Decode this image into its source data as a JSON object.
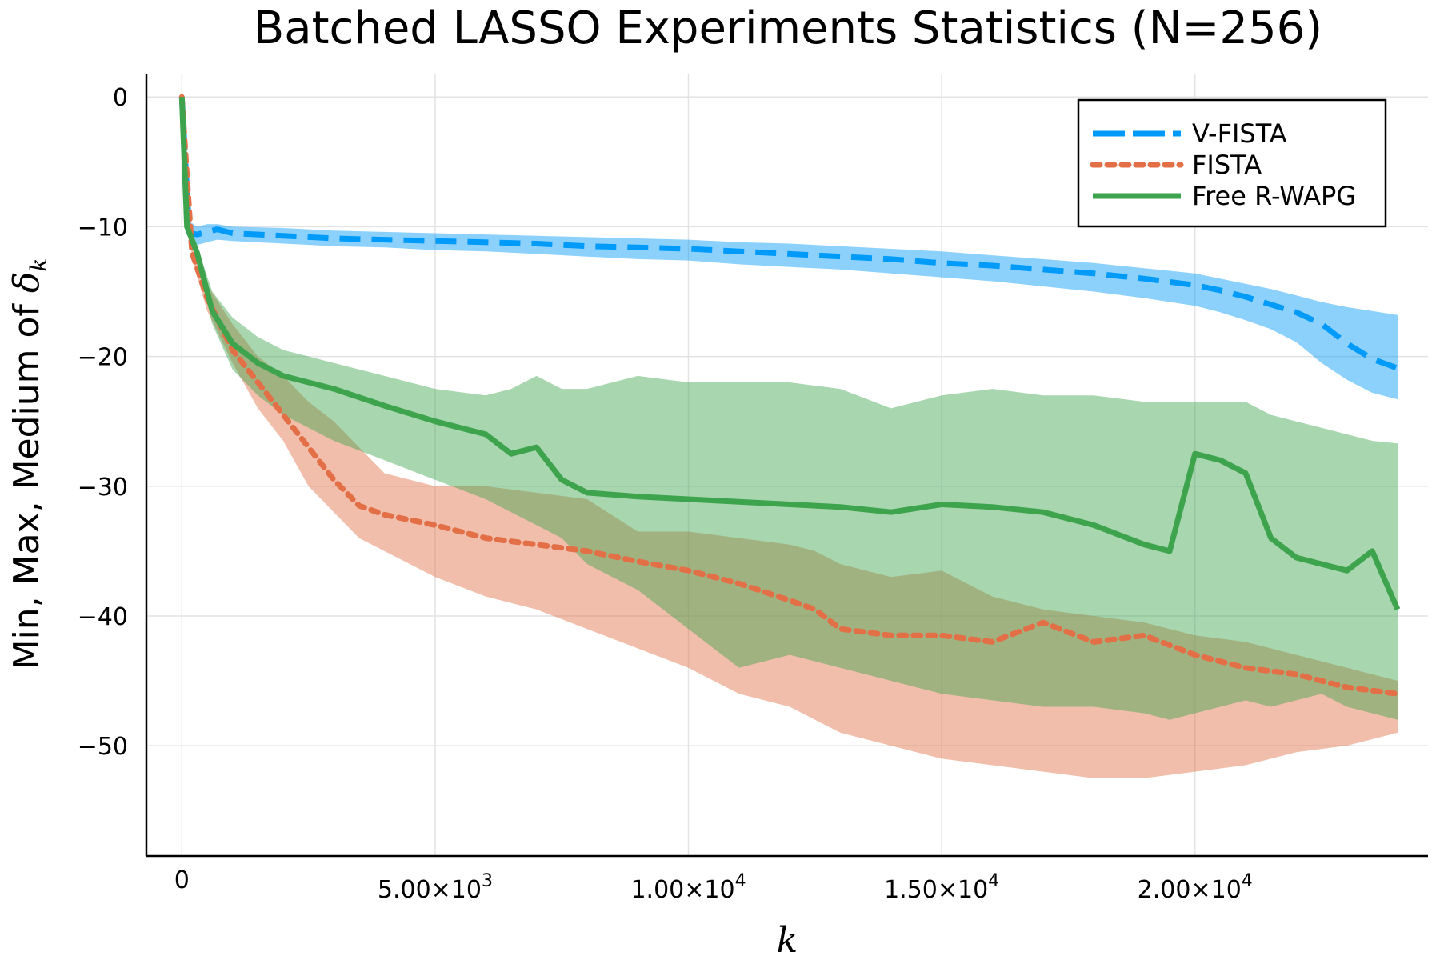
{
  "chart_data": {
    "type": "line",
    "title": "Batched LASSO Experiments Statistics (N=256)",
    "xlabel": "k",
    "ylabel_prefix": "Min, Max, Medium of ",
    "ylabel_symbol": "δ",
    "ylabel_subscript": "k",
    "xlim": [
      -700,
      24600
    ],
    "ylim": [
      -58.5,
      1.8
    ],
    "x_ticks": [
      {
        "value": 0,
        "label": "0",
        "exp": ""
      },
      {
        "value": 5000,
        "label": "5.00×10",
        "exp": "3"
      },
      {
        "value": 10000,
        "label": "1.00×10",
        "exp": "4"
      },
      {
        "value": 15000,
        "label": "1.50×10",
        "exp": "4"
      },
      {
        "value": 20000,
        "label": "2.00×10",
        "exp": "4"
      }
    ],
    "y_ticks": [
      {
        "value": 0,
        "label": "0"
      },
      {
        "value": -10,
        "label": "−10"
      },
      {
        "value": -20,
        "label": "−20"
      },
      {
        "value": -30,
        "label": "−30"
      },
      {
        "value": -40,
        "label": "−40"
      },
      {
        "value": -50,
        "label": "−50"
      }
    ],
    "grid": true,
    "legend_position": "top-right",
    "series": [
      {
        "name": "V-FISTA",
        "color": "#009af9",
        "dash": "dashed",
        "x": [
          0,
          150,
          300,
          500,
          700,
          1000,
          2000,
          3000,
          4000,
          5000,
          6000,
          7000,
          8000,
          9000,
          10000,
          11000,
          12000,
          13000,
          14000,
          15000,
          16000,
          17000,
          18000,
          19000,
          20000,
          20500,
          21000,
          21500,
          22000,
          22500,
          23000,
          23500,
          24000
        ],
        "median": [
          0,
          -10.5,
          -10.6,
          -10.4,
          -10.2,
          -10.5,
          -10.7,
          -10.9,
          -11.0,
          -11.1,
          -11.2,
          -11.3,
          -11.5,
          -11.6,
          -11.7,
          -11.9,
          -12.1,
          -12.3,
          -12.5,
          -12.8,
          -13.0,
          -13.3,
          -13.6,
          -14.0,
          -14.5,
          -14.9,
          -15.4,
          -16.0,
          -16.6,
          -17.5,
          -19.0,
          -20.2,
          -20.9
        ],
        "min": [
          0,
          -11.2,
          -11.4,
          -11.2,
          -11.0,
          -11.1,
          -11.3,
          -11.5,
          -11.6,
          -11.8,
          -11.9,
          -12.1,
          -12.3,
          -12.5,
          -12.6,
          -12.9,
          -13.1,
          -13.3,
          -13.6,
          -13.9,
          -14.2,
          -14.6,
          -15.0,
          -15.5,
          -16.1,
          -16.6,
          -17.2,
          -17.9,
          -18.9,
          -20.5,
          -21.8,
          -22.8,
          -23.3
        ],
        "max": [
          0,
          -9.6,
          -10.0,
          -9.8,
          -9.8,
          -10.0,
          -10.1,
          -10.3,
          -10.4,
          -10.5,
          -10.6,
          -10.7,
          -10.8,
          -10.9,
          -11.0,
          -11.2,
          -11.3,
          -11.5,
          -11.7,
          -11.9,
          -12.2,
          -12.5,
          -12.8,
          -13.2,
          -13.6,
          -14.0,
          -14.4,
          -14.8,
          -15.3,
          -15.8,
          -16.2,
          -16.5,
          -16.8
        ]
      },
      {
        "name": "FISTA",
        "color": "#e26f46",
        "dash": "dotted",
        "x": [
          0,
          200,
          500,
          1000,
          1500,
          2000,
          2500,
          3000,
          3500,
          4000,
          5000,
          6000,
          7000,
          8000,
          9000,
          10000,
          11000,
          12000,
          12500,
          13000,
          14000,
          15000,
          16000,
          17000,
          18000,
          19000,
          20000,
          21000,
          22000,
          23000,
          24000
        ],
        "median": [
          0,
          -12.0,
          -15.5,
          -19.5,
          -22.0,
          -24.5,
          -27.0,
          -29.5,
          -31.5,
          -32.2,
          -33.0,
          -34.0,
          -34.5,
          -35.0,
          -35.8,
          -36.5,
          -37.5,
          -38.8,
          -39.5,
          -41.0,
          -41.5,
          -41.5,
          -42.0,
          -40.5,
          -42.0,
          -41.5,
          -43.0,
          -44.0,
          -44.5,
          -45.5,
          -46.0
        ],
        "min": [
          0,
          -12.5,
          -16.5,
          -20.5,
          -24.0,
          -26.5,
          -30.0,
          -32.0,
          -34.0,
          -35.0,
          -37.0,
          -38.5,
          -39.5,
          -41.0,
          -42.5,
          -44.0,
          -46.0,
          -47.0,
          -48.0,
          -49.0,
          -50.0,
          -51.0,
          -51.5,
          -52.0,
          -52.5,
          -52.5,
          -52.0,
          -51.5,
          -50.5,
          -50.0,
          -49.0
        ],
        "max": [
          0,
          -11.0,
          -14.5,
          -17.5,
          -20.0,
          -21.5,
          -23.5,
          -25.0,
          -27.0,
          -29.0,
          -30.0,
          -30.0,
          -30.5,
          -31.0,
          -33.5,
          -33.5,
          -34.0,
          -34.5,
          -35.0,
          -36.0,
          -37.0,
          -36.5,
          -38.5,
          -39.5,
          -40.0,
          -40.5,
          -41.5,
          -42.0,
          -43.0,
          -44.0,
          -45.0
        ]
      },
      {
        "name": "Free R-WAPG",
        "color": "#3da44d",
        "dash": "solid",
        "x": [
          0,
          100,
          300,
          600,
          1000,
          1500,
          2000,
          3000,
          4000,
          5000,
          6000,
          6500,
          7000,
          7500,
          8000,
          9000,
          10000,
          11000,
          12000,
          13000,
          14000,
          15000,
          16000,
          17000,
          18000,
          19000,
          19500,
          20000,
          20500,
          21000,
          21500,
          22000,
          22500,
          23000,
          23500,
          24000
        ],
        "median": [
          0,
          -10.0,
          -12.0,
          -16.5,
          -19.0,
          -20.5,
          -21.5,
          -22.5,
          -23.8,
          -25.0,
          -26.0,
          -27.5,
          -27.0,
          -29.5,
          -30.5,
          -30.8,
          -31.0,
          -31.2,
          -31.4,
          -31.6,
          -32.0,
          -31.4,
          -31.6,
          -32.0,
          -33.0,
          -34.5,
          -35.0,
          -27.5,
          -28.0,
          -29.0,
          -34.0,
          -35.5,
          -36.0,
          -36.5,
          -35.0,
          -39.5
        ],
        "min": [
          0,
          -10.5,
          -12.5,
          -17.5,
          -21.0,
          -23.0,
          -24.5,
          -26.5,
          -28.0,
          -29.5,
          -31.0,
          -32.0,
          -33.0,
          -34.0,
          -36.0,
          -38.0,
          -41.0,
          -44.0,
          -43.0,
          -44.0,
          -45.0,
          -46.0,
          -46.5,
          -47.0,
          -47.0,
          -47.5,
          -48.0,
          -47.5,
          -47.0,
          -46.5,
          -47.0,
          -46.5,
          -46.0,
          -47.0,
          -47.5,
          -48.0
        ],
        "max": [
          0,
          -9.5,
          -11.5,
          -15.0,
          -17.0,
          -18.5,
          -19.5,
          -20.5,
          -21.5,
          -22.5,
          -23.0,
          -22.5,
          -21.5,
          -22.5,
          -22.5,
          -21.5,
          -22.0,
          -22.0,
          -22.0,
          -22.5,
          -24.0,
          -23.0,
          -22.5,
          -23.0,
          -23.0,
          -23.5,
          -23.5,
          -23.5,
          -23.5,
          -23.5,
          -24.5,
          -25.0,
          -25.5,
          -26.0,
          -26.5,
          -26.7
        ]
      }
    ]
  }
}
